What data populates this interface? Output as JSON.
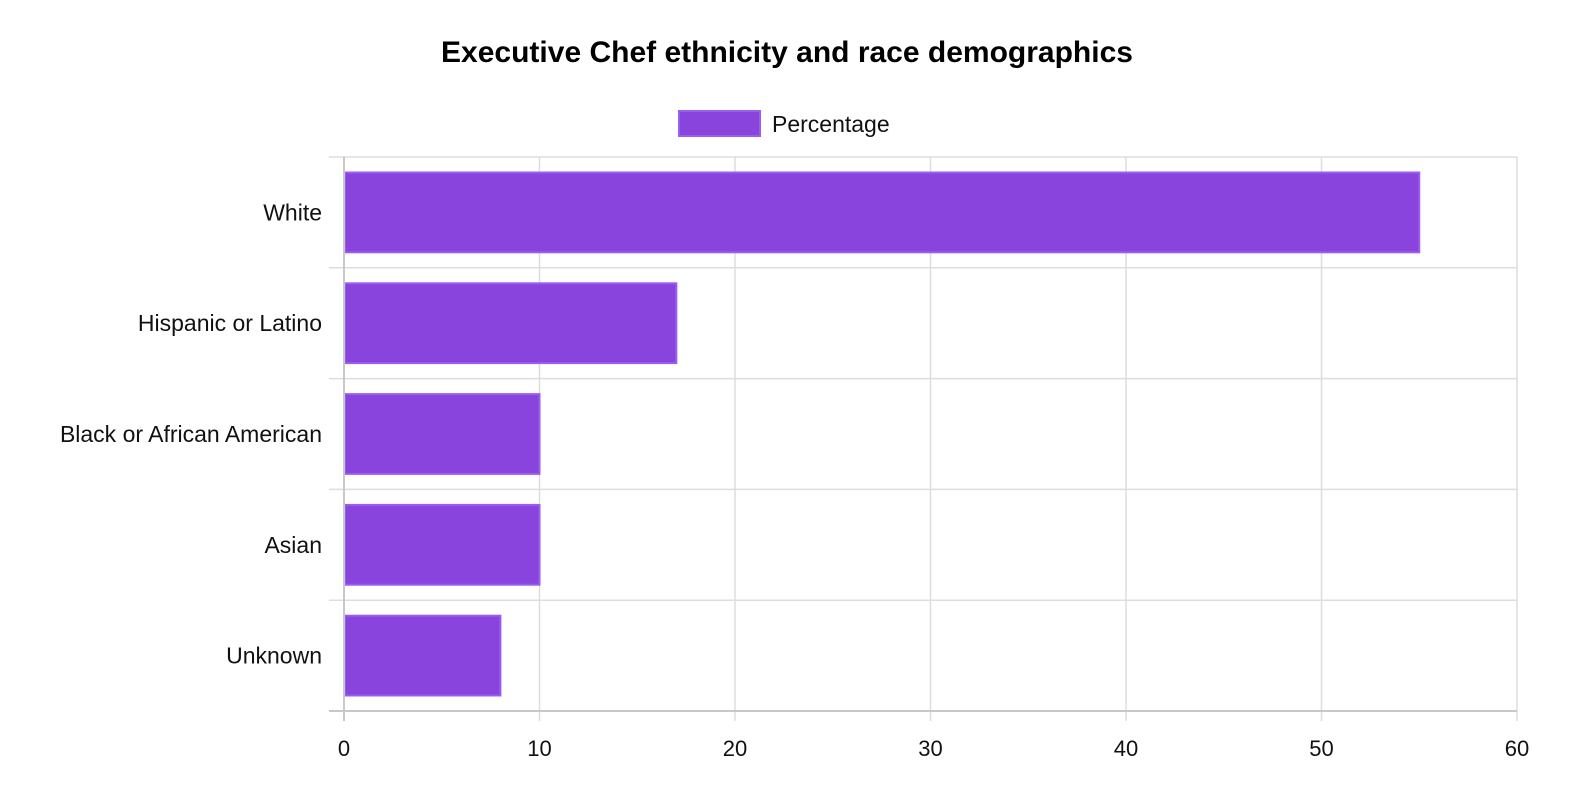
{
  "chart_data": {
    "type": "bar",
    "orientation": "horizontal",
    "title": "Executive Chef ethnicity and race demographics",
    "xlabel": "",
    "ylabel": "",
    "categories": [
      "White",
      "Hispanic or Latino",
      "Black or African American",
      "Asian",
      "Unknown"
    ],
    "series": [
      {
        "name": "Percentage",
        "values": [
          55,
          17,
          10,
          10,
          8
        ],
        "color": "#8844dd"
      }
    ],
    "xlim": [
      0,
      60
    ],
    "xticks": [
      "0",
      "10",
      "20",
      "30",
      "40",
      "50",
      "60"
    ],
    "grid": true,
    "legend_position": "top-center"
  }
}
